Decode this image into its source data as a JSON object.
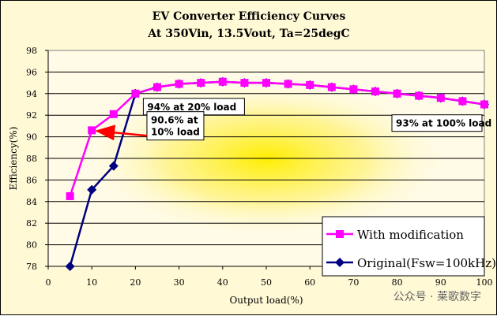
{
  "chart_data": {
    "type": "line",
    "title": "EV Converter Efficiency Curves",
    "subtitle": "At 350Vin, 13.5Vout, Ta=25degC",
    "xlabel": "Output load(%)",
    "ylabel": "Efficiency(%)",
    "xlim": [
      0,
      100
    ],
    "ylim": [
      78,
      98
    ],
    "xticks": [
      0,
      10,
      20,
      30,
      40,
      50,
      60,
      70,
      80,
      90,
      100
    ],
    "yticks": [
      78,
      80,
      82,
      84,
      86,
      88,
      90,
      92,
      94,
      96,
      98
    ],
    "grid": "horizontal",
    "legend_position": "bottom-right",
    "series": [
      {
        "name": "With modification",
        "color": "#ff00ff",
        "marker": "square",
        "x": [
          5,
          10,
          15,
          20,
          25,
          30,
          35,
          40,
          45,
          50,
          55,
          60,
          65,
          70,
          75,
          80,
          85,
          90,
          95,
          100
        ],
        "y": [
          84.5,
          90.6,
          92.1,
          94.0,
          94.6,
          94.9,
          95.0,
          95.1,
          95.0,
          95.0,
          94.9,
          94.8,
          94.6,
          94.4,
          94.2,
          94.0,
          93.8,
          93.6,
          93.3,
          93.0
        ]
      },
      {
        "name": "Original(Fsw=100kHz)",
        "color": "#000080",
        "marker": "diamond",
        "x": [
          5,
          10,
          15,
          20,
          25,
          30,
          35,
          40,
          45,
          50,
          55,
          60,
          65,
          70,
          75,
          80,
          85,
          90,
          95,
          100
        ],
        "y": [
          78.0,
          85.1,
          87.3,
          94.0,
          94.6,
          94.9,
          95.0,
          95.1,
          95.0,
          95.0,
          94.9,
          94.8,
          94.6,
          94.4,
          94.2,
          94.0,
          93.8,
          93.6,
          93.3,
          93.0
        ]
      }
    ],
    "annotations": [
      {
        "text": [
          "94% at 20% load"
        ],
        "x": 20,
        "y": 94
      },
      {
        "text": [
          "90.6% at",
          "10% load"
        ],
        "x": 10,
        "y": 90.6,
        "arrow": true
      },
      {
        "text": [
          "93% at 100% load"
        ],
        "x": 100,
        "y": 93
      }
    ]
  },
  "watermark": "公众号 · 莱歌数字"
}
